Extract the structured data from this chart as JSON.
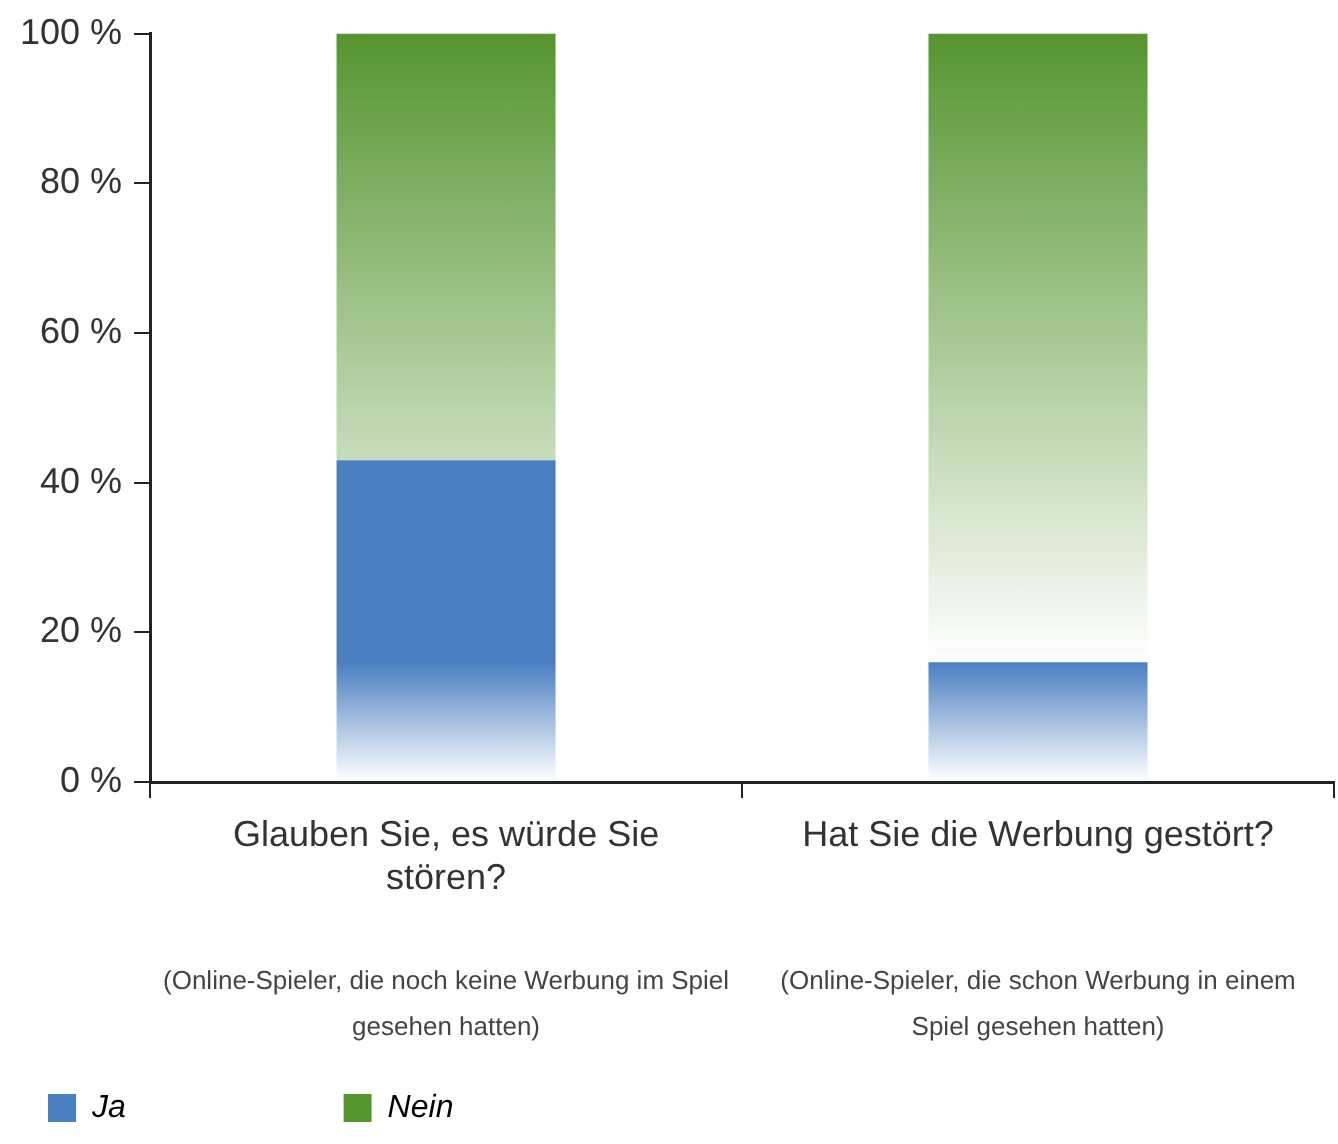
{
  "chart_data": {
    "type": "bar",
    "stacked": true,
    "categories": [
      "Glauben Sie, es würde Sie stören?",
      "Hat Sie die Werbung gestört?"
    ],
    "series": [
      {
        "name": "Ja",
        "color": "#4a7fc1",
        "values": [
          43,
          16
        ]
      },
      {
        "name": "Nein",
        "color": "#55952f",
        "values": [
          57,
          84
        ]
      }
    ],
    "ylim": [
      0,
      100
    ],
    "yticks": [
      {
        "value": 0,
        "label": "0 %"
      },
      {
        "value": 20,
        "label": "20 %"
      },
      {
        "value": 40,
        "label": "40 %"
      },
      {
        "value": 60,
        "label": "60 %"
      },
      {
        "value": 80,
        "label": "80 %"
      },
      {
        "value": 100,
        "label": "100 %"
      }
    ],
    "annotations": [
      "(Online-Spieler, die noch keine Werbung im Spiel gesehen hatten)",
      "(Online-Spieler, die schon Werbung in einem Spiel gesehen hatten)"
    ],
    "grid": false,
    "legend": "bottom left"
  }
}
